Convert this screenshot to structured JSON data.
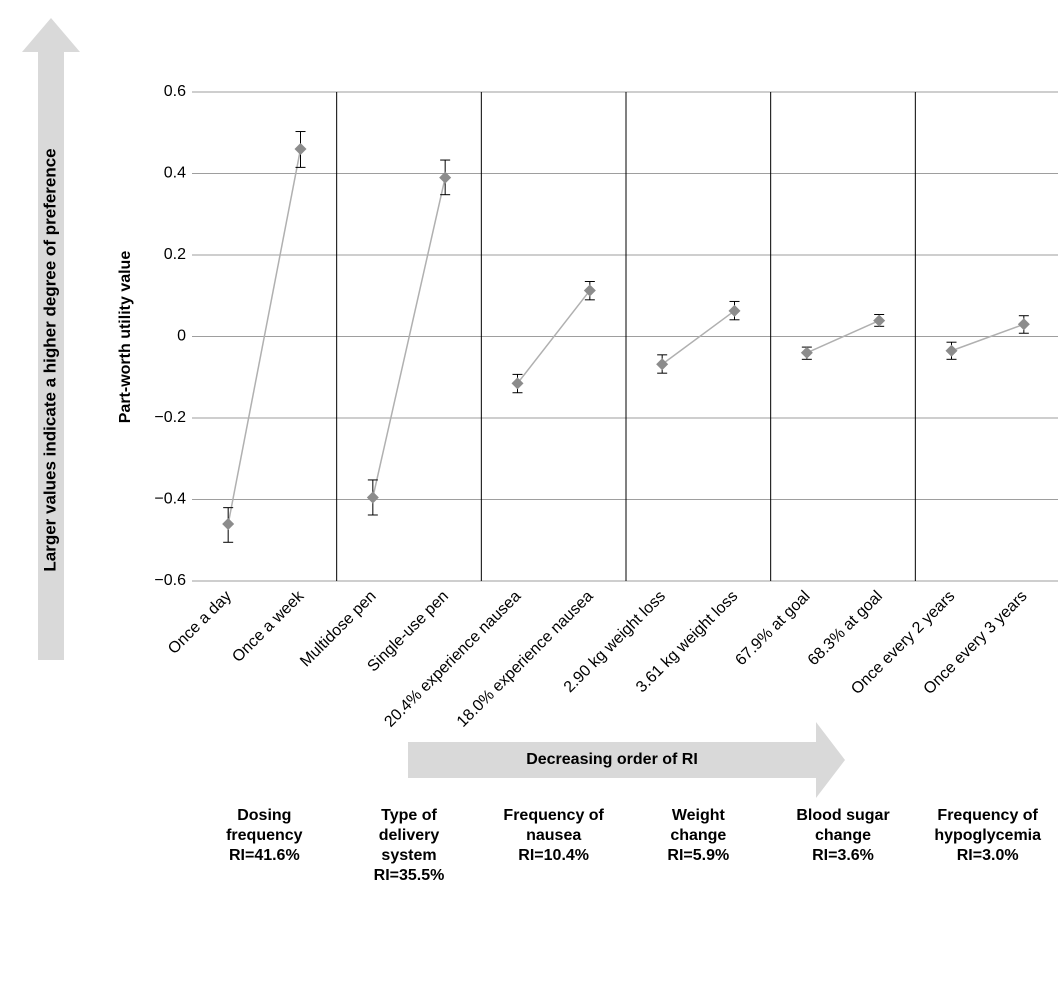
{
  "chart_data": {
    "type": "line",
    "ylabel": "Part-worth utility value",
    "ylim": [
      -0.6,
      0.6
    ],
    "yticks": [
      0.6,
      0.4,
      0.2,
      0,
      -0.2,
      -0.4,
      -0.6
    ],
    "ytick_labels": [
      "0.6",
      "0.4",
      "0.2",
      "0",
      "−0.2",
      "−0.4",
      "−0.6"
    ],
    "grid": true,
    "colors": {
      "marker": "#8c8c8c",
      "line": "#b0b0b0",
      "grid": "#9e9e9e",
      "divider": "#000000"
    },
    "side_arrow_label": "Larger values indicate a higher degree of preference",
    "bottom_arrow_label": "Decreasing order of RI",
    "groups": [
      {
        "title_lines": [
          "Dosing",
          "frequency",
          "RI=41.6%"
        ],
        "points": [
          {
            "label": "Once a day",
            "value": -0.46,
            "lower": -0.505,
            "upper": -0.42
          },
          {
            "label": "Once a week",
            "value": 0.46,
            "lower": 0.415,
            "upper": 0.503
          }
        ]
      },
      {
        "title_lines": [
          "Type of",
          "delivery",
          "system",
          "RI=35.5%"
        ],
        "points": [
          {
            "label": "Multidose pen",
            "value": -0.395,
            "lower": -0.438,
            "upper": -0.352
          },
          {
            "label": "Single-use pen",
            "value": 0.39,
            "lower": 0.348,
            "upper": 0.433
          }
        ]
      },
      {
        "title_lines": [
          "Frequency of",
          "nausea",
          "RI=10.4%"
        ],
        "points": [
          {
            "label": "20.4% experience nausea",
            "value": -0.115,
            "lower": -0.138,
            "upper": -0.093
          },
          {
            "label": "18.0% experience nausea",
            "value": 0.113,
            "lower": 0.09,
            "upper": 0.135
          }
        ]
      },
      {
        "title_lines": [
          "Weight",
          "change",
          "RI=5.9%"
        ],
        "points": [
          {
            "label": "2.90 kg weight loss",
            "value": -0.068,
            "lower": -0.09,
            "upper": -0.045
          },
          {
            "label": "3.61 kg weight loss",
            "value": 0.063,
            "lower": 0.041,
            "upper": 0.086
          }
        ]
      },
      {
        "title_lines": [
          "Blood sugar",
          "change",
          "RI=3.6%"
        ],
        "points": [
          {
            "label": "67.9% at goal",
            "value": -0.04,
            "lower": -0.056,
            "upper": -0.026
          },
          {
            "label": "68.3% at goal",
            "value": 0.039,
            "lower": 0.025,
            "upper": 0.054
          }
        ]
      },
      {
        "title_lines": [
          "Frequency of",
          "hypoglycemia",
          "RI=3.0%"
        ],
        "points": [
          {
            "label": "Once every 2 years",
            "value": -0.035,
            "lower": -0.056,
            "upper": -0.014
          },
          {
            "label": "Once every 3 years",
            "value": 0.03,
            "lower": 0.008,
            "upper": 0.051
          }
        ]
      }
    ]
  }
}
